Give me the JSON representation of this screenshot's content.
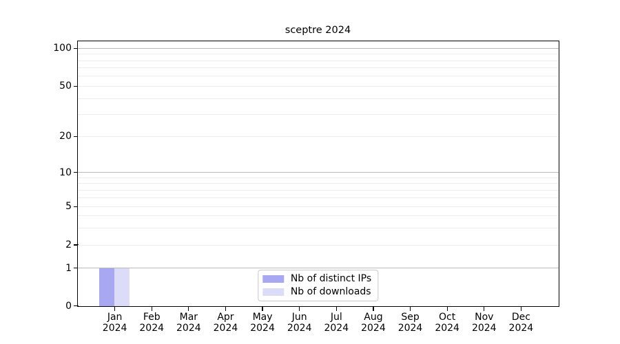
{
  "chart_data": {
    "type": "bar",
    "title": "sceptre 2024",
    "categories": [
      "Jan",
      "Feb",
      "Mar",
      "Apr",
      "May",
      "Jun",
      "Jul",
      "Aug",
      "Sep",
      "Oct",
      "Nov",
      "Dec"
    ],
    "year_line": "2024",
    "series": [
      {
        "name": "Nb of distinct IPs",
        "color": "#a7a7f2",
        "values": [
          1,
          0,
          0,
          0,
          0,
          0,
          0,
          0,
          0,
          0,
          0,
          0
        ]
      },
      {
        "name": "Nb of downloads",
        "color": "#dcdcf9",
        "values": [
          1,
          0,
          0,
          0,
          0,
          0,
          0,
          0,
          0,
          0,
          0,
          0
        ]
      }
    ],
    "yticks": [
      0,
      1,
      2,
      5,
      10,
      20,
      50,
      100
    ],
    "y_major_ticks": [
      1,
      10,
      100
    ],
    "xlabel": "",
    "ylabel": "",
    "axis_note": "log-style y axis with 0 baseline, horizontal major and minor gridlines only",
    "grid": true,
    "legend_position": "bottom-center inside plot"
  }
}
